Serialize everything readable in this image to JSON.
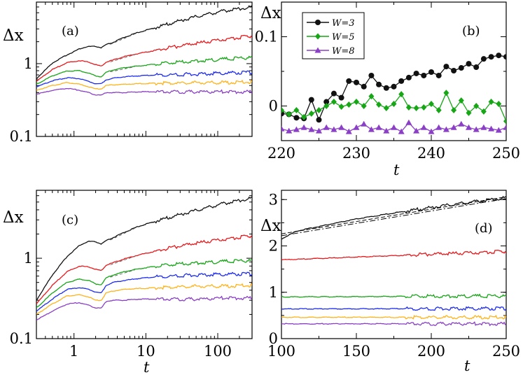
{
  "colors": {
    "black": "#111111",
    "red": "#e8181c",
    "green": "#16a616",
    "blue": "#1d2bf0",
    "orange": "#ffb31a",
    "purple": "#8a3fc6"
  },
  "chart_data": [
    {
      "id": "a",
      "type": "line",
      "panel_label": "(a)",
      "ylabel": "Δx",
      "xlabel": "",
      "xscale": "log",
      "yscale": "log",
      "xlim": [
        0.3,
        300
      ],
      "ylim": [
        0.1,
        7
      ],
      "xticks": [
        1,
        10,
        100
      ],
      "yticks": [
        {
          "v": 0.1,
          "label": "0.1"
        },
        {
          "v": 1,
          "label": "1"
        }
      ],
      "series": [
        {
          "name": "black",
          "color": "black",
          "x": [
            0.3,
            0.5,
            0.8,
            1.2,
            1.6,
            2.0,
            2.4,
            2.8,
            3.5,
            5,
            8,
            15,
            30,
            60,
            120,
            300
          ],
          "y": [
            0.62,
            1.02,
            1.32,
            1.6,
            1.72,
            1.72,
            1.65,
            1.82,
            1.95,
            2.3,
            2.7,
            3.2,
            3.9,
            4.6,
            5.3,
            6.0
          ]
        },
        {
          "name": "red",
          "color": "red",
          "x": [
            0.3,
            0.5,
            0.8,
            1.2,
            1.6,
            2.0,
            2.4,
            2.8,
            3.5,
            5,
            8,
            15,
            30,
            60,
            120,
            300
          ],
          "y": [
            0.57,
            0.83,
            1.03,
            1.1,
            1.05,
            0.97,
            0.92,
            1.05,
            1.12,
            1.25,
            1.38,
            1.55,
            1.75,
            1.95,
            2.15,
            2.4
          ]
        },
        {
          "name": "green",
          "color": "green",
          "x": [
            0.3,
            0.5,
            0.8,
            1.2,
            1.6,
            2.0,
            2.4,
            2.8,
            3.5,
            5,
            8,
            15,
            30,
            60,
            120,
            300
          ],
          "y": [
            0.52,
            0.68,
            0.79,
            0.8,
            0.74,
            0.68,
            0.66,
            0.76,
            0.82,
            0.88,
            0.93,
            0.99,
            1.05,
            1.1,
            1.15,
            1.22
          ]
        },
        {
          "name": "blue",
          "color": "blue",
          "x": [
            0.3,
            0.5,
            0.8,
            1.2,
            1.6,
            2.0,
            2.4,
            2.8,
            3.5,
            5,
            8,
            15,
            30,
            60,
            120,
            300
          ],
          "y": [
            0.48,
            0.58,
            0.64,
            0.62,
            0.57,
            0.53,
            0.53,
            0.6,
            0.63,
            0.66,
            0.68,
            0.7,
            0.71,
            0.72,
            0.74,
            0.76
          ]
        },
        {
          "name": "orange",
          "color": "orange",
          "x": [
            0.3,
            0.5,
            0.8,
            1.2,
            1.6,
            2.0,
            2.4,
            2.8,
            3.5,
            5,
            8,
            15,
            30,
            60,
            120,
            300
          ],
          "y": [
            0.43,
            0.5,
            0.55,
            0.52,
            0.48,
            0.45,
            0.45,
            0.5,
            0.51,
            0.52,
            0.53,
            0.54,
            0.54,
            0.55,
            0.55,
            0.56
          ]
        },
        {
          "name": "purple",
          "color": "purple",
          "x": [
            0.3,
            0.5,
            0.8,
            1.2,
            1.6,
            2.0,
            2.4,
            2.8,
            3.5,
            5,
            8,
            15,
            30,
            60,
            120,
            300
          ],
          "y": [
            0.38,
            0.43,
            0.46,
            0.43,
            0.4,
            0.37,
            0.37,
            0.4,
            0.4,
            0.4,
            0.41,
            0.41,
            0.41,
            0.41,
            0.41,
            0.41
          ]
        }
      ]
    },
    {
      "id": "b",
      "type": "line",
      "panel_label": "(b)",
      "ylabel": "Δx",
      "xlabel": "t",
      "xscale": "linear",
      "yscale": "linear",
      "xlim": [
        220,
        250
      ],
      "ylim": [
        -0.05,
        0.15
      ],
      "xticks": [
        {
          "v": 220,
          "label": "220"
        },
        {
          "v": 230,
          "label": "230"
        },
        {
          "v": 240,
          "label": "240"
        },
        {
          "v": 250,
          "label": "250"
        }
      ],
      "yticks": [
        {
          "v": 0,
          "label": "0"
        },
        {
          "v": 0.1,
          "label": "0.1"
        }
      ],
      "legend": [
        {
          "label": "W=3",
          "color": "black",
          "marker": "circle"
        },
        {
          "label": "W=5",
          "color": "green",
          "marker": "diamond"
        },
        {
          "label": "W=8",
          "color": "purple",
          "marker": "triangle"
        }
      ],
      "series": [
        {
          "name": "W=3",
          "color": "black",
          "marker": "circle",
          "x": [
            220,
            221,
            222,
            223,
            224,
            225,
            226,
            227,
            228,
            229,
            230,
            231,
            232,
            233,
            234,
            235,
            236,
            237,
            238,
            239,
            240,
            241,
            242,
            243,
            244,
            245,
            246,
            247,
            248,
            249,
            250
          ],
          "y": [
            -0.011,
            -0.012,
            -0.017,
            -0.018,
            0.009,
            -0.02,
            0.006,
            0.018,
            0.012,
            0.036,
            0.034,
            0.028,
            0.044,
            0.031,
            0.026,
            0.028,
            0.036,
            0.041,
            0.047,
            0.044,
            0.049,
            0.044,
            0.057,
            0.051,
            0.055,
            0.061,
            0.056,
            0.068,
            0.071,
            0.073,
            0.071
          ]
        },
        {
          "name": "W=5",
          "color": "green",
          "marker": "diamond",
          "x": [
            220,
            221,
            222,
            223,
            224,
            225,
            226,
            227,
            228,
            229,
            230,
            231,
            232,
            233,
            234,
            235,
            236,
            237,
            238,
            239,
            240,
            241,
            242,
            243,
            244,
            245,
            246,
            247,
            248,
            249,
            250
          ],
          "y": [
            -0.006,
            -0.012,
            -0.006,
            -0.016,
            -0.011,
            -0.006,
            0.0,
            0.006,
            -0.001,
            0.002,
            0.006,
            0.0,
            0.014,
            0.002,
            -0.003,
            0.003,
            0.017,
            -0.002,
            -0.003,
            -0.002,
            0.003,
            -0.006,
            0.019,
            -0.006,
            0.008,
            -0.01,
            0.0,
            -0.008,
            0.006,
            0.003,
            -0.022
          ]
        },
        {
          "name": "W=8",
          "color": "purple",
          "marker": "triangle",
          "x": [
            220,
            221,
            222,
            223,
            224,
            225,
            226,
            227,
            228,
            229,
            230,
            231,
            232,
            233,
            234,
            235,
            236,
            237,
            238,
            239,
            240,
            241,
            242,
            243,
            244,
            245,
            246,
            247,
            248,
            249,
            250
          ],
          "y": [
            -0.033,
            -0.036,
            -0.034,
            -0.031,
            -0.034,
            -0.036,
            -0.031,
            -0.034,
            -0.031,
            -0.037,
            -0.031,
            -0.026,
            -0.034,
            -0.031,
            -0.036,
            -0.031,
            -0.037,
            -0.024,
            -0.036,
            -0.031,
            -0.037,
            -0.031,
            -0.034,
            -0.031,
            -0.026,
            -0.031,
            -0.034,
            -0.031,
            -0.033,
            -0.035,
            -0.031
          ]
        }
      ]
    },
    {
      "id": "c",
      "type": "line",
      "panel_label": "(c)",
      "ylabel": "Δx",
      "xlabel": "t",
      "xscale": "log",
      "yscale": "log",
      "xlim": [
        0.3,
        300
      ],
      "ylim": [
        0.1,
        7
      ],
      "xticks": [
        {
          "v": 1,
          "label": "1"
        },
        {
          "v": 10,
          "label": "10"
        },
        {
          "v": 100,
          "label": "100"
        }
      ],
      "yticks": [
        {
          "v": 0.1,
          "label": "0.1"
        },
        {
          "v": 1,
          "label": "1"
        }
      ],
      "series": [
        {
          "name": "black",
          "color": "black",
          "x": [
            0.3,
            0.5,
            0.8,
            1.2,
            1.6,
            2.0,
            2.4,
            2.8,
            3.5,
            5,
            8,
            15,
            30,
            60,
            120,
            300
          ],
          "y": [
            0.3,
            0.62,
            1.05,
            1.45,
            1.62,
            1.6,
            1.5,
            1.65,
            1.8,
            2.1,
            2.5,
            2.95,
            3.5,
            4.1,
            4.8,
            5.6
          ]
        },
        {
          "name": "red",
          "color": "red",
          "x": [
            0.3,
            0.5,
            0.8,
            1.2,
            1.6,
            2.0,
            2.4,
            2.8,
            3.5,
            5,
            8,
            15,
            30,
            60,
            120,
            300
          ],
          "y": [
            0.27,
            0.46,
            0.68,
            0.8,
            0.78,
            0.73,
            0.7,
            0.82,
            0.88,
            0.98,
            1.1,
            1.25,
            1.42,
            1.58,
            1.72,
            1.9
          ]
        },
        {
          "name": "green",
          "color": "green",
          "x": [
            0.3,
            0.5,
            0.8,
            1.2,
            1.6,
            2.0,
            2.4,
            2.8,
            3.5,
            5,
            8,
            15,
            30,
            60,
            120,
            300
          ],
          "y": [
            0.24,
            0.37,
            0.5,
            0.55,
            0.53,
            0.48,
            0.47,
            0.57,
            0.62,
            0.68,
            0.74,
            0.8,
            0.85,
            0.88,
            0.91,
            0.94
          ]
        },
        {
          "name": "blue",
          "color": "blue",
          "x": [
            0.3,
            0.5,
            0.8,
            1.2,
            1.6,
            2.0,
            2.4,
            2.8,
            3.5,
            5,
            8,
            15,
            30,
            60,
            120,
            300
          ],
          "y": [
            0.22,
            0.31,
            0.41,
            0.43,
            0.41,
            0.38,
            0.37,
            0.46,
            0.5,
            0.53,
            0.56,
            0.59,
            0.61,
            0.62,
            0.63,
            0.64
          ]
        },
        {
          "name": "orange",
          "color": "orange",
          "x": [
            0.3,
            0.5,
            0.8,
            1.2,
            1.6,
            2.0,
            2.4,
            2.8,
            3.5,
            5,
            8,
            15,
            30,
            60,
            120,
            300
          ],
          "y": [
            0.2,
            0.27,
            0.34,
            0.35,
            0.33,
            0.3,
            0.3,
            0.37,
            0.39,
            0.41,
            0.42,
            0.43,
            0.44,
            0.45,
            0.45,
            0.46
          ]
        },
        {
          "name": "purple",
          "color": "purple",
          "x": [
            0.3,
            0.5,
            0.8,
            1.2,
            1.6,
            2.0,
            2.4,
            2.8,
            3.5,
            5,
            8,
            15,
            30,
            60,
            120,
            300
          ],
          "y": [
            0.17,
            0.22,
            0.27,
            0.28,
            0.26,
            0.24,
            0.24,
            0.29,
            0.3,
            0.3,
            0.31,
            0.31,
            0.31,
            0.31,
            0.32,
            0.32
          ]
        }
      ]
    },
    {
      "id": "d",
      "type": "line",
      "panel_label": "(d)",
      "ylabel": "Δx",
      "xlabel": "t",
      "xscale": "linear",
      "yscale": "linear",
      "xlim": [
        100,
        250
      ],
      "ylim": [
        0,
        3.2
      ],
      "xticks": [
        {
          "v": 100,
          "label": "100"
        },
        {
          "v": 150,
          "label": "150"
        },
        {
          "v": 200,
          "label": "200"
        },
        {
          "v": 250,
          "label": "250"
        }
      ],
      "yticks": [
        {
          "v": 0,
          "label": "0"
        },
        {
          "v": 1,
          "label": "1"
        },
        {
          "v": 2,
          "label": "2"
        },
        {
          "v": 3,
          "label": "3"
        }
      ],
      "series": [
        {
          "name": "black",
          "color": "black",
          "x": [
            100,
            110,
            125,
            150,
            175,
            200,
            225,
            250
          ],
          "y": [
            2.15,
            2.32,
            2.42,
            2.58,
            2.71,
            2.83,
            2.94,
            3.04
          ]
        },
        {
          "name": "red",
          "color": "red",
          "x": [
            100,
            250
          ],
          "y": [
            1.7,
            1.88
          ]
        },
        {
          "name": "green",
          "color": "green",
          "x": [
            100,
            250
          ],
          "y": [
            0.9,
            0.92
          ]
        },
        {
          "name": "blue",
          "color": "blue",
          "x": [
            100,
            250
          ],
          "y": [
            0.64,
            0.65
          ]
        },
        {
          "name": "orange",
          "color": "orange",
          "x": [
            100,
            250
          ],
          "y": [
            0.46,
            0.46
          ]
        },
        {
          "name": "purple",
          "color": "purple",
          "x": [
            100,
            250
          ],
          "y": [
            0.32,
            0.32
          ]
        }
      ],
      "fits": [
        {
          "name": "fit-dashed",
          "style": "dashed",
          "x": [
            100,
            250
          ],
          "y": [
            2.26,
            3.06
          ]
        },
        {
          "name": "fit-dashdot",
          "style": "dashdot",
          "x": [
            100,
            250
          ],
          "y": [
            2.22,
            3.02
          ]
        }
      ]
    }
  ]
}
